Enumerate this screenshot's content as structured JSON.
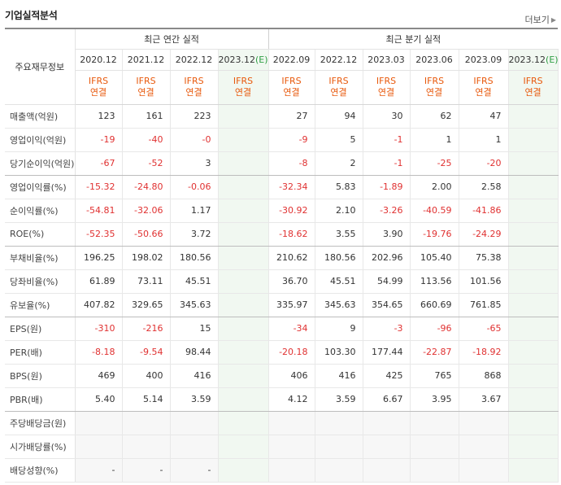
{
  "header": {
    "title": "기업실적분석",
    "more_label": "더보기"
  },
  "columns": {
    "label_header": "주요재무정보",
    "annual_group": "최근 연간 실적",
    "quarter_group": "최근 분기 실적",
    "dates": [
      "2020.12",
      "2021.12",
      "2022.12",
      "2023.12(E)",
      "2022.09",
      "2022.12",
      "2023.03",
      "2023.06",
      "2023.09",
      "2023.12(E)"
    ],
    "estimate_flags": [
      false,
      false,
      false,
      true,
      false,
      false,
      false,
      false,
      false,
      true
    ],
    "ifrs_line1": "IFRS",
    "ifrs_line2": "연결"
  },
  "rows": [
    {
      "label": "매출액(억원)",
      "values": [
        "123",
        "161",
        "223",
        "",
        "27",
        "94",
        "30",
        "62",
        "47",
        ""
      ]
    },
    {
      "label": "영업이익(억원)",
      "values": [
        "-19",
        "-40",
        "-0",
        "",
        "-9",
        "5",
        "-1",
        "1",
        "1",
        ""
      ]
    },
    {
      "label": "당기순이익(억원)",
      "values": [
        "-67",
        "-52",
        "3",
        "",
        "-8",
        "2",
        "-1",
        "-25",
        "-20",
        ""
      ]
    },
    {
      "label": "영업이익률(%)",
      "values": [
        "-15.32",
        "-24.80",
        "-0.06",
        "",
        "-32.34",
        "5.83",
        "-1.89",
        "2.00",
        "2.58",
        ""
      ]
    },
    {
      "label": "순이익률(%)",
      "values": [
        "-54.81",
        "-32.06",
        "1.17",
        "",
        "-30.92",
        "2.10",
        "-3.26",
        "-40.59",
        "-41.86",
        ""
      ]
    },
    {
      "label": "ROE(%)",
      "values": [
        "-52.35",
        "-50.66",
        "3.72",
        "",
        "-18.62",
        "3.55",
        "3.90",
        "-19.76",
        "-24.29",
        ""
      ]
    },
    {
      "label": "부채비율(%)",
      "values": [
        "196.25",
        "198.02",
        "180.56",
        "",
        "210.62",
        "180.56",
        "202.96",
        "105.40",
        "75.38",
        ""
      ]
    },
    {
      "label": "당좌비율(%)",
      "values": [
        "61.89",
        "73.11",
        "45.51",
        "",
        "36.70",
        "45.51",
        "54.99",
        "113.56",
        "101.56",
        ""
      ]
    },
    {
      "label": "유보율(%)",
      "values": [
        "407.82",
        "329.65",
        "345.63",
        "",
        "335.97",
        "345.63",
        "354.65",
        "660.69",
        "761.85",
        ""
      ]
    },
    {
      "label": "EPS(원)",
      "values": [
        "-310",
        "-216",
        "15",
        "",
        "-34",
        "9",
        "-3",
        "-96",
        "-65",
        ""
      ]
    },
    {
      "label": "PER(배)",
      "values": [
        "-8.18",
        "-9.54",
        "98.44",
        "",
        "-20.18",
        "103.30",
        "177.44",
        "-22.87",
        "-18.92",
        ""
      ]
    },
    {
      "label": "BPS(원)",
      "values": [
        "469",
        "400",
        "416",
        "",
        "406",
        "416",
        "425",
        "765",
        "868",
        ""
      ]
    },
    {
      "label": "PBR(배)",
      "values": [
        "5.40",
        "5.14",
        "3.59",
        "",
        "4.12",
        "3.59",
        "6.67",
        "3.95",
        "3.67",
        ""
      ]
    },
    {
      "label": "주당배당금(원)",
      "values": [
        "",
        "",
        "",
        "",
        "",
        "",
        "",
        "",
        "",
        ""
      ]
    },
    {
      "label": "시가배당률(%)",
      "values": [
        "",
        "",
        "",
        "",
        "",
        "",
        "",
        "",
        "",
        ""
      ]
    },
    {
      "label": "배당성향(%)",
      "values": [
        "-",
        "-",
        "-",
        "",
        "",
        "",
        "",
        "",
        "",
        ""
      ]
    }
  ],
  "row_separators_after": [
    2,
    5,
    8,
    12
  ],
  "grey_rows_from": 13,
  "colors": {
    "negative": "#e03131",
    "ifrs": "#e8590c",
    "estimate_bg": "#f1f8f1",
    "estimate_mark": "#2f9e44"
  }
}
